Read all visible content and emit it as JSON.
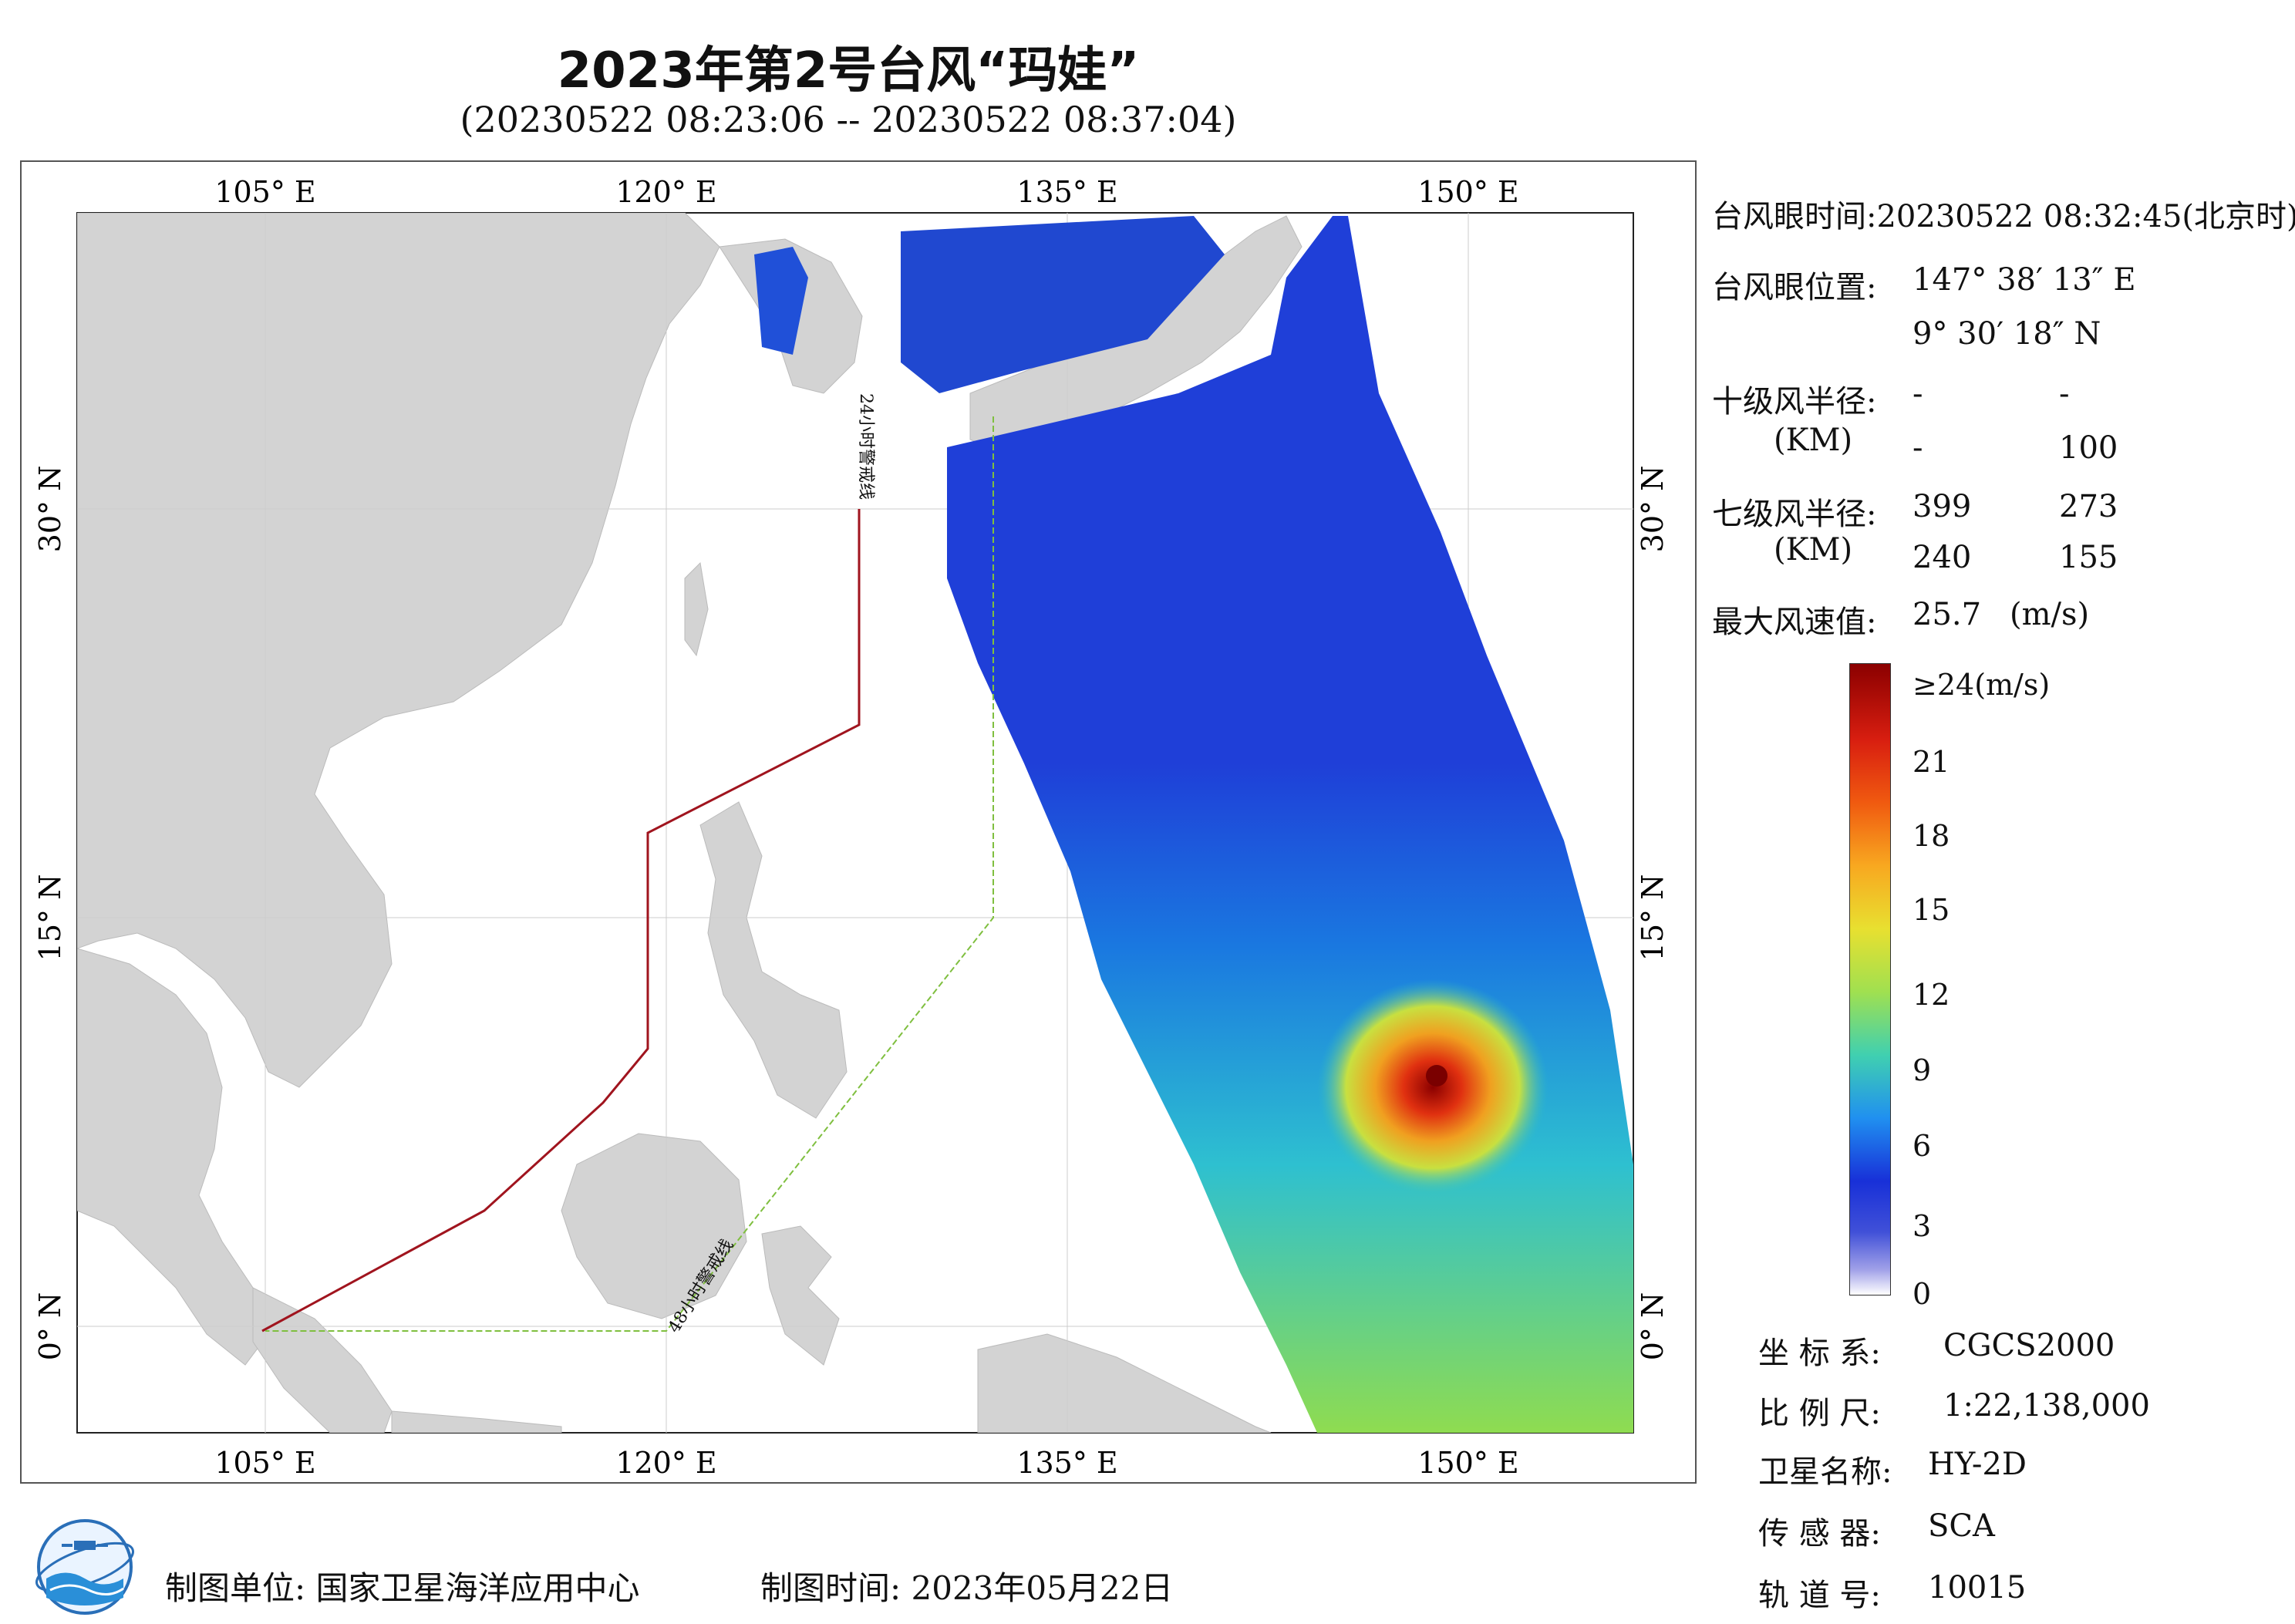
{
  "header": {
    "title": "2023年第2号台风“玛娃”",
    "subtitle": "(20230522 08:23:06 -- 20230522 08:37:04)"
  },
  "map": {
    "lon_ticks": [
      "105° E",
      "120° E",
      "135° E",
      "150° E"
    ],
    "lat_ticks": [
      "30° N",
      "15° N",
      "0° N"
    ],
    "warning_line_24h": "24小时警戒线",
    "warning_line_48h": "48小时警戒线",
    "colors": {
      "land": "#d3d3d3",
      "ocean": "#ffffff",
      "line_24h": "#a0141e",
      "line_48h": "#7fbf3f"
    }
  },
  "info": {
    "eye_time": "台风眼时间:20230522 08:32:45(北京时)",
    "eye_position_label": "台风眼位置:",
    "eye_lon": "147° 38′ 13″ E",
    "eye_lat": "9° 30′ 18″ N",
    "r10_label": "十级风半径:",
    "r10_unit": "(KM)",
    "r10_values": [
      "-",
      "-",
      "-",
      "100"
    ],
    "r7_label": "七级风半径:",
    "r7_unit": "(KM)",
    "r7_values": [
      "399",
      "273",
      "240",
      "155"
    ],
    "max_wind_label": "最大风速值:",
    "max_wind_value": "25.7",
    "max_wind_unit": "(m/s)"
  },
  "colorbar": {
    "labels": [
      "≥24(m/s)",
      "21",
      "18",
      "15",
      "12",
      "9",
      "6",
      "3",
      "0"
    ]
  },
  "meta": {
    "coord_label": "坐 标 系:",
    "coord_value": "CGCS2000",
    "scale_label": "比 例 尺:",
    "scale_value": "1:22,138,000",
    "satellite_label": "卫星名称:",
    "satellite_value": "HY-2D",
    "sensor_label": "传 感 器:",
    "sensor_value": "SCA",
    "orbit_label": "轨 道 号:",
    "orbit_value": "10015"
  },
  "footer": {
    "org": "制图单位: 国家卫星海洋应用中心",
    "time": "制图时间:   2023年05月22日"
  }
}
